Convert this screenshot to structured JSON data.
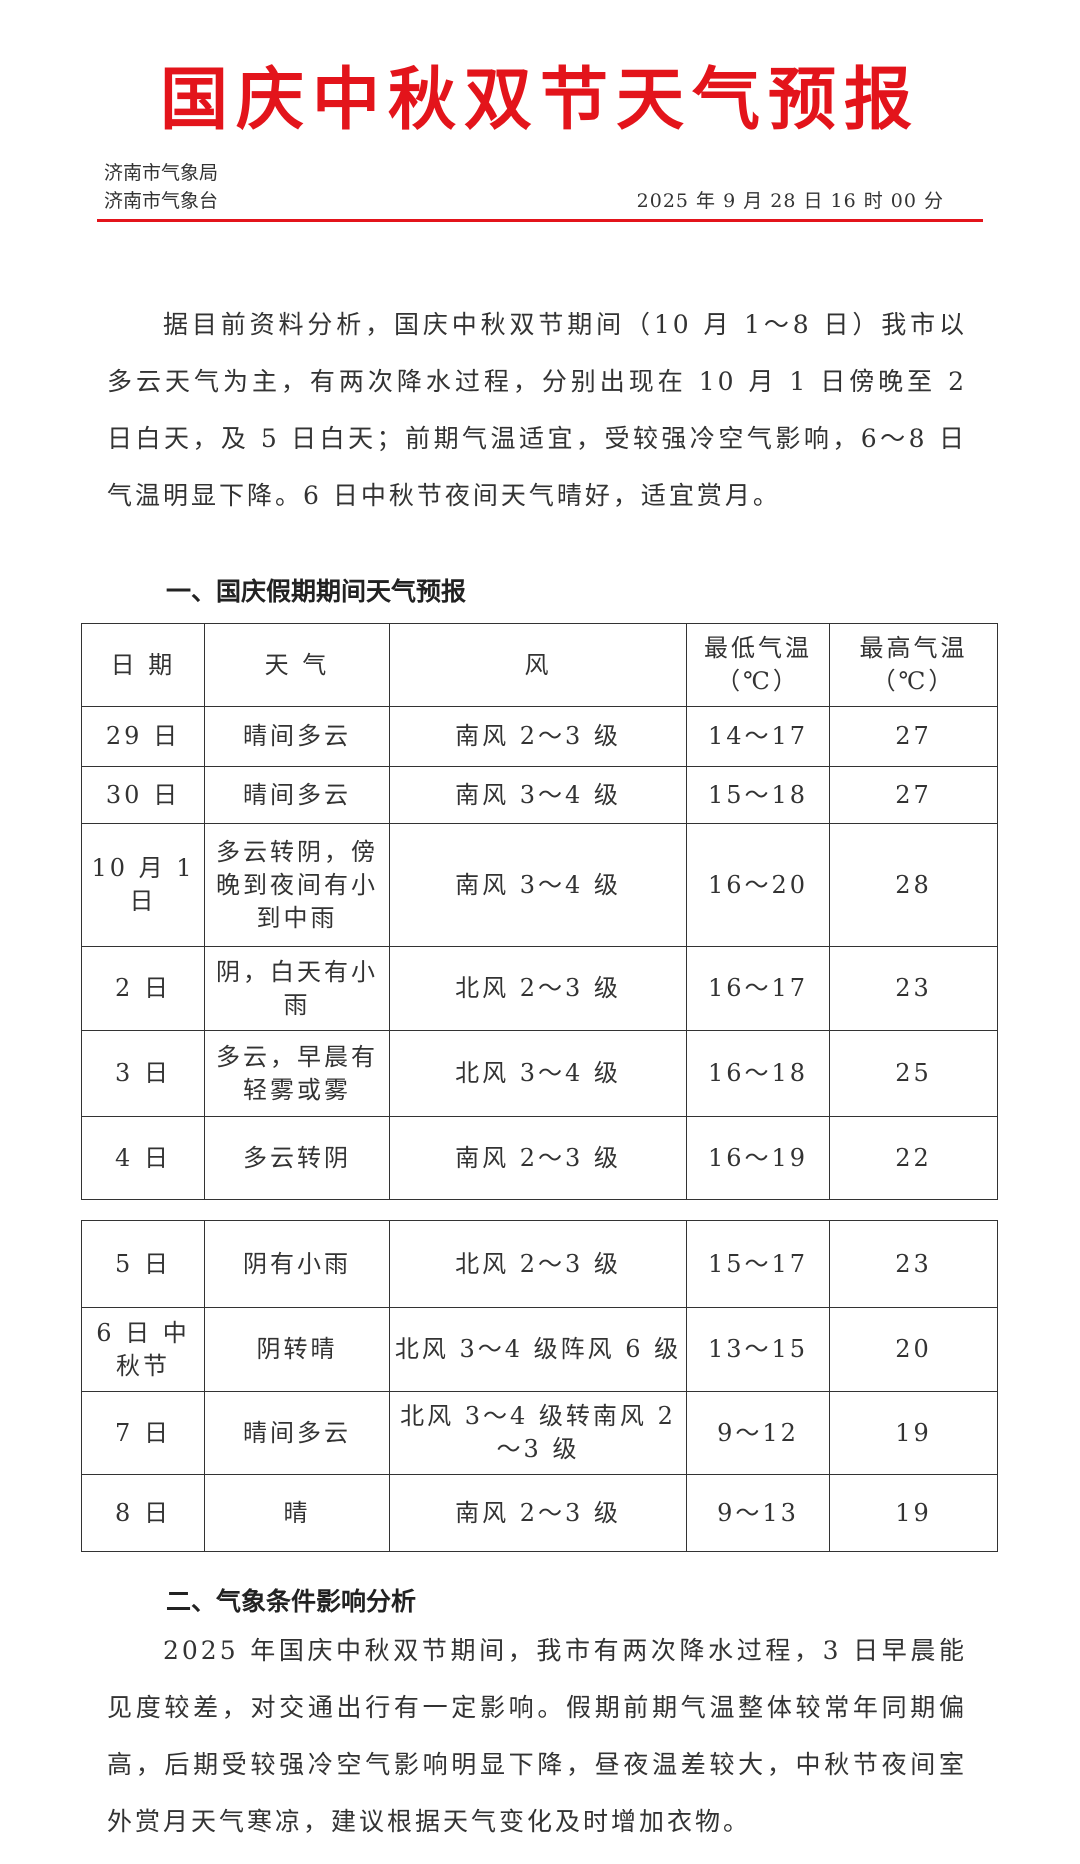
{
  "title": "国庆中秋双节天气预报",
  "issuer": {
    "line1": "济南市气象局",
    "line2": "济南市气象台",
    "issued": "2025 年 9 月 28 日 16 时 00 分"
  },
  "accent_color": "#e3141b",
  "intro": "据目前资料分析，国庆中秋双节期间（10 月 1～8 日）我市以多云天气为主，有两次降水过程，分别出现在 10 月 1 日傍晚至 2 日白天，及 5 日白天；前期气温适宜，受较强冷空气影响，6～8 日气温明显下降。6 日中秋节夜间天气晴好，适宜赏月。",
  "section1": "一、国庆假期期间天气预报",
  "table": {
    "headers": [
      "日 期",
      "天 气",
      "风",
      "最低气温（℃）",
      "最高气温（℃）"
    ],
    "rows1": [
      [
        "29 日",
        "晴间多云",
        "南风 2～3 级",
        "14～17",
        "27"
      ],
      [
        "30 日",
        "晴间多云",
        "南风 3～4 级",
        "15～18",
        "27"
      ],
      [
        "10 月 1 日",
        "多云转阴，傍晚到夜间有小到中雨",
        "南风 3～4 级",
        "16～20",
        "28"
      ],
      [
        "2 日",
        "阴，白天有小雨",
        "北风 2～3 级",
        "16～17",
        "23"
      ],
      [
        "3 日",
        "多云，早晨有轻雾或雾",
        "北风 3～4 级",
        "16～18",
        "25"
      ],
      [
        "4 日",
        "多云转阴",
        "南风 2～3 级",
        "16～19",
        "22"
      ]
    ],
    "rows2": [
      [
        "5 日",
        "阴有小雨",
        "北风 2～3 级",
        "15～17",
        "23"
      ],
      [
        "6 日 中秋节",
        "阴转晴",
        "北风 3～4 级阵风 6 级",
        "13～15",
        "20"
      ],
      [
        "7 日",
        "晴间多云",
        "北风 3～4 级转南风 2～3 级",
        "9～12",
        "19"
      ],
      [
        "8 日",
        "晴",
        "南风 2～3 级",
        "9～13",
        "19"
      ]
    ]
  },
  "section2": "二、气象条件影响分析",
  "analysis": "2025 年国庆中秋双节期间，我市有两次降水过程，3 日早晨能见度较差，对交通出行有一定影响。假期前期气温整体较常年同期偏高，后期受较强冷空气影响明显下降，昼夜温差较大，中秋节夜间室外赏月天气寒凉，建议根据天气变化及时增加衣物。"
}
